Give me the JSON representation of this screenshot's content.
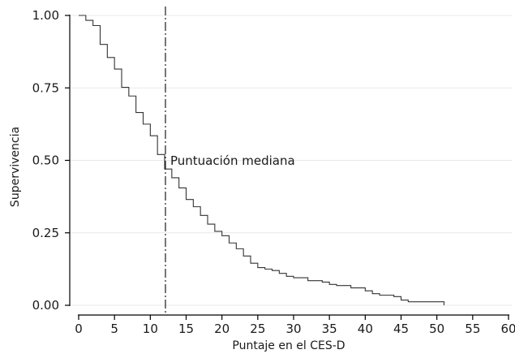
{
  "chart_data": {
    "type": "line",
    "step": true,
    "xlabel": "Puntaje en el CES-D",
    "ylabel": "Supervivencia",
    "xlim": [
      0,
      60
    ],
    "ylim": [
      0,
      1
    ],
    "x_ticks": [
      0,
      5,
      10,
      15,
      20,
      25,
      30,
      35,
      40,
      45,
      50,
      55,
      60
    ],
    "y_ticks": [
      0.0,
      0.25,
      0.5,
      0.75,
      1.0
    ],
    "y_tick_labels": [
      "0.00",
      "0.25",
      "0.50",
      "0.75",
      "1.00"
    ],
    "grid": {
      "horizontal": true,
      "vertical": false,
      "color": "#e8e8e8"
    },
    "line_color": "#333333",
    "series": [
      {
        "x": [
          0,
          1,
          2,
          3,
          4,
          5,
          6,
          7,
          8,
          9,
          10,
          11,
          12,
          13,
          14,
          15,
          16,
          17,
          18,
          19,
          20,
          21,
          22,
          23,
          24,
          25,
          26,
          27,
          28,
          29,
          30,
          31,
          32,
          33,
          34,
          35,
          36,
          37,
          38,
          39,
          40,
          41,
          42,
          43,
          44,
          45,
          46,
          47,
          48,
          49,
          50,
          51
        ],
        "y": [
          1.0,
          0.983,
          0.965,
          0.9,
          0.855,
          0.815,
          0.752,
          0.722,
          0.665,
          0.625,
          0.585,
          0.52,
          0.47,
          0.44,
          0.405,
          0.365,
          0.34,
          0.31,
          0.28,
          0.255,
          0.24,
          0.215,
          0.195,
          0.17,
          0.145,
          0.13,
          0.125,
          0.12,
          0.11,
          0.1,
          0.095,
          0.095,
          0.085,
          0.085,
          0.08,
          0.072,
          0.068,
          0.068,
          0.06,
          0.06,
          0.05,
          0.04,
          0.035,
          0.035,
          0.03,
          0.018,
          0.012,
          0.012,
          0.012,
          0.012,
          0.012,
          0.0
        ]
      }
    ],
    "reference_line": {
      "x": 12,
      "style": "dashed",
      "label": "Puntuación mediana"
    }
  }
}
